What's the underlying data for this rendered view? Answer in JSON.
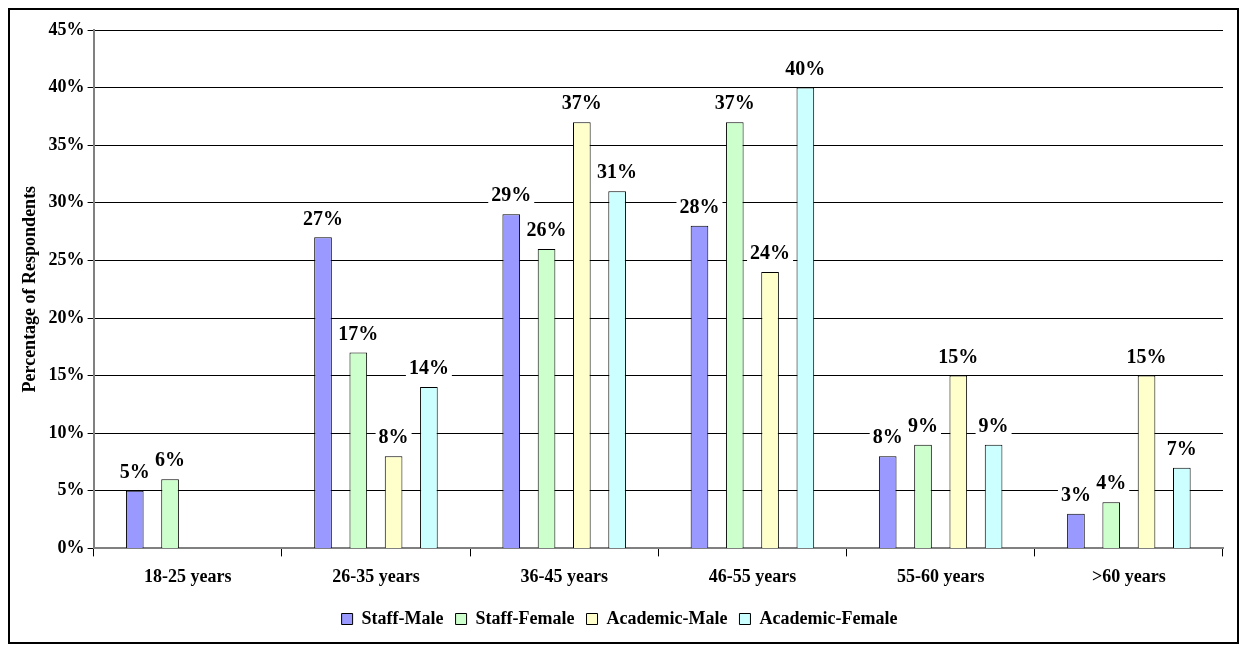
{
  "chart_data": {
    "type": "bar",
    "ylabel": "Percentage of Respondents",
    "categories": [
      "18-25 years",
      "26-35 years",
      "36-45 years",
      "46-55 years",
      "55-60 years",
      ">60 years"
    ],
    "series": [
      {
        "name": "Staff-Male",
        "color": "#9999ff",
        "values": [
          5,
          27,
          29,
          28,
          8,
          3
        ],
        "value_labels": [
          "5%",
          "27%",
          "29%",
          "28%",
          "8%",
          "3%"
        ]
      },
      {
        "name": "Staff-Female",
        "color": "#ccffcc",
        "values": [
          6,
          17,
          26,
          37,
          9,
          4
        ],
        "value_labels": [
          "6%",
          "17%",
          "26%",
          "37%",
          "9%",
          "4%"
        ]
      },
      {
        "name": "Academic-Male",
        "color": "#ffffcc",
        "values": [
          null,
          8,
          37,
          24,
          15,
          15
        ],
        "value_labels": [
          null,
          "8%",
          "37%",
          "24%",
          "15%",
          "15%"
        ]
      },
      {
        "name": "Academic-Female",
        "color": "#ccffff",
        "values": [
          null,
          14,
          31,
          40,
          9,
          7
        ],
        "value_labels": [
          null,
          "14%",
          "31%",
          "40%",
          "9%",
          "7%"
        ]
      }
    ],
    "ylim": [
      0,
      45
    ],
    "yticks": [
      {
        "value": 0,
        "label": "0%"
      },
      {
        "value": 5,
        "label": "5%"
      },
      {
        "value": 10,
        "label": "10%"
      },
      {
        "value": 15,
        "label": "15%"
      },
      {
        "value": 20,
        "label": "20%"
      },
      {
        "value": 25,
        "label": "25%"
      },
      {
        "value": 30,
        "label": "30%"
      },
      {
        "value": 35,
        "label": "35%"
      },
      {
        "value": 40,
        "label": "40%"
      },
      {
        "value": 45,
        "label": "45%"
      }
    ],
    "grid": "y",
    "legend": "bottom"
  }
}
